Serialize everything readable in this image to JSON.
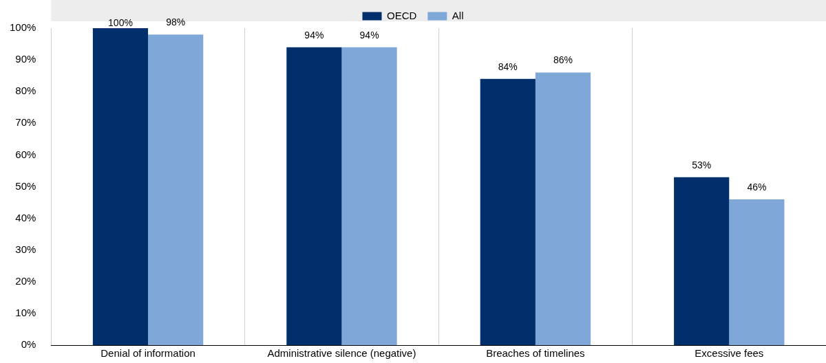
{
  "chart_data": {
    "type": "bar",
    "categories": [
      "Denial of information",
      "Administrative silence (negative)",
      "Breaches of timelines",
      "Excessive fees"
    ],
    "series": [
      {
        "name": "OECD",
        "color": "#002f6c",
        "values": [
          100,
          94,
          84,
          53
        ],
        "value_labels": [
          "100%",
          "94%",
          "84%",
          "53%"
        ]
      },
      {
        "name": "All",
        "color": "#7fa8d9",
        "values": [
          98,
          94,
          86,
          46
        ],
        "value_labels": [
          "98%",
          "94%",
          "86%",
          "46%"
        ]
      }
    ],
    "ylim": [
      0,
      100
    ],
    "yticks": [
      {
        "value": 0,
        "label": "0%"
      },
      {
        "value": 10,
        "label": "10%"
      },
      {
        "value": 20,
        "label": "20%"
      },
      {
        "value": 30,
        "label": "30%"
      },
      {
        "value": 40,
        "label": "40%"
      },
      {
        "value": 50,
        "label": "50%"
      },
      {
        "value": 60,
        "label": "60%"
      },
      {
        "value": 70,
        "label": "70%"
      },
      {
        "value": 80,
        "label": "80%"
      },
      {
        "value": 90,
        "label": "90%"
      },
      {
        "value": 100,
        "label": "100%"
      }
    ],
    "grid": "x",
    "legend": "top"
  }
}
